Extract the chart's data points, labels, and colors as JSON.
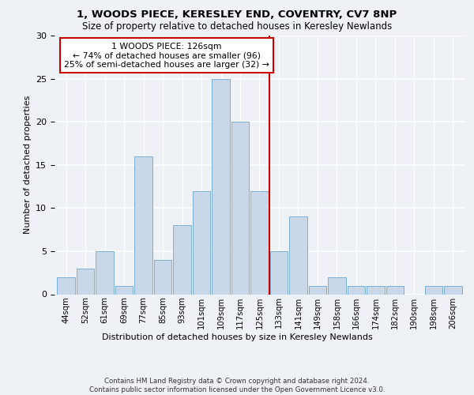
{
  "title1": "1, WOODS PIECE, KERESLEY END, COVENTRY, CV7 8NP",
  "title2": "Size of property relative to detached houses in Keresley Newlands",
  "xlabel": "Distribution of detached houses by size in Keresley Newlands",
  "ylabel": "Number of detached properties",
  "footer": "Contains HM Land Registry data © Crown copyright and database right 2024.\nContains public sector information licensed under the Open Government Licence v3.0.",
  "categories": [
    "44sqm",
    "52sqm",
    "61sqm",
    "69sqm",
    "77sqm",
    "85sqm",
    "93sqm",
    "101sqm",
    "109sqm",
    "117sqm",
    "125sqm",
    "133sqm",
    "141sqm",
    "149sqm",
    "158sqm",
    "166sqm",
    "174sqm",
    "182sqm",
    "190sqm",
    "198sqm",
    "206sqm"
  ],
  "values": [
    2,
    3,
    5,
    1,
    16,
    4,
    8,
    12,
    25,
    20,
    12,
    5,
    9,
    1,
    2,
    1,
    1,
    1,
    0,
    1,
    1
  ],
  "bar_color": "#c8d8e8",
  "bar_edge_color": "#7bafd4",
  "property_line_color": "#cc0000",
  "annotation_text": "1 WOODS PIECE: 126sqm\n← 74% of detached houses are smaller (96)\n25% of semi-detached houses are larger (32) →",
  "annotation_box_color": "#cc0000",
  "ylim": [
    0,
    30
  ],
  "background_color": "#eef2f7",
  "grid_color": "#ffffff"
}
